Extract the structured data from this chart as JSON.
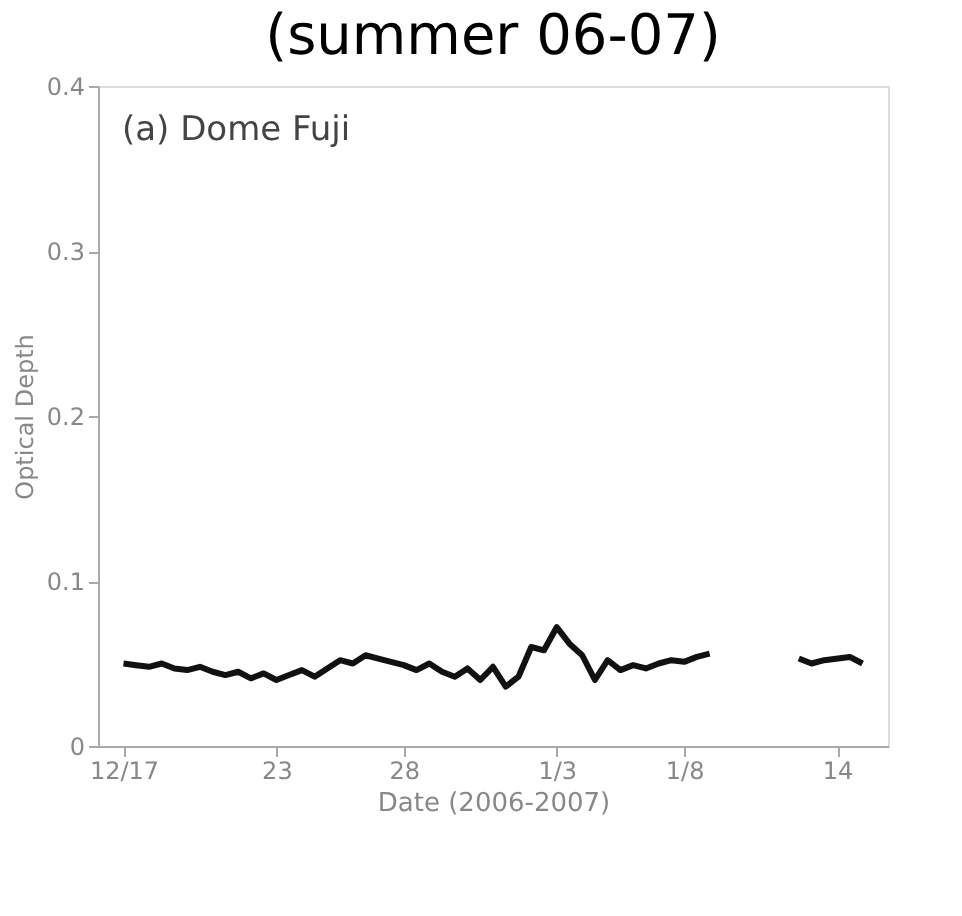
{
  "chart_data": {
    "type": "line",
    "title": "(summer 06-07)",
    "xlabel": "Date (2006-2007)",
    "ylabel": "Optical Depth",
    "annotations": [
      "(a) Dome Fuji"
    ],
    "x": [
      "2006-12-17T00:00",
      "2006-12-17T12:00",
      "2006-12-18T00:00",
      "2006-12-18T12:00",
      "2006-12-19T00:00",
      "2006-12-19T12:00",
      "2006-12-20T00:00",
      "2006-12-20T12:00",
      "2006-12-21T00:00",
      "2006-12-21T12:00",
      "2006-12-22T00:00",
      "2006-12-22T12:00",
      "2006-12-23T00:00",
      "2006-12-23T12:00",
      "2006-12-24T00:00",
      "2006-12-24T12:00",
      "2006-12-25T00:00",
      "2006-12-25T12:00",
      "2006-12-26T00:00",
      "2006-12-26T12:00",
      "2006-12-27T00:00",
      "2006-12-27T12:00",
      "2006-12-28T00:00",
      "2006-12-28T12:00",
      "2006-12-29T00:00",
      "2006-12-29T12:00",
      "2006-12-30T00:00",
      "2006-12-30T12:00",
      "2006-12-31T00:00",
      "2006-12-31T12:00",
      "2007-01-01T00:00",
      "2007-01-01T12:00",
      "2007-01-02T00:00",
      "2007-01-02T12:00",
      "2007-01-03T00:00",
      "2007-01-03T12:00",
      "2007-01-04T00:00",
      "2007-01-04T12:00",
      "2007-01-05T00:00",
      "2007-01-05T12:00",
      "2007-01-06T00:00",
      "2007-01-06T12:00",
      "2007-01-07T00:00",
      "2007-01-07T12:00",
      "2007-01-08T00:00",
      "2007-01-08T12:00",
      "2007-01-09T00:00",
      "2007-01-09T12:00",
      "2007-01-12T12:00",
      "2007-01-13T00:00",
      "2007-01-13T12:00",
      "2007-01-14T12:00",
      "2007-01-15T00:00"
    ],
    "series": [
      {
        "color": "#111111",
        "values": [
          0.05,
          0.049,
          0.048,
          0.05,
          0.047,
          0.046,
          0.048,
          0.045,
          0.043,
          0.045,
          0.041,
          0.044,
          0.04,
          0.043,
          0.046,
          0.042,
          0.047,
          0.052,
          0.05,
          0.055,
          0.053,
          0.051,
          0.049,
          0.046,
          0.05,
          0.045,
          0.042,
          0.047,
          0.04,
          0.048,
          0.036,
          0.042,
          0.06,
          0.058,
          0.072,
          0.062,
          0.055,
          0.04,
          0.052,
          0.046,
          0.049,
          0.047,
          0.05,
          0.052,
          0.051,
          0.054,
          0.056,
          null,
          0.053,
          0.05,
          0.052,
          0.054,
          0.05
        ]
      }
    ],
    "xlim": [
      "2006-12-16T00:00",
      "2007-01-16T00:00"
    ],
    "xticks": [
      {
        "value": "2006-12-17",
        "label": "12/17"
      },
      {
        "value": "2006-12-23",
        "label": "23"
      },
      {
        "value": "2006-12-28",
        "label": "28"
      },
      {
        "value": "2007-01-03",
        "label": "1/3"
      },
      {
        "value": "2007-01-08",
        "label": "1/8"
      },
      {
        "value": "2007-01-14",
        "label": "14"
      }
    ],
    "ylim": [
      0,
      0.4
    ],
    "yticks": [
      0,
      0.1,
      0.2,
      0.3,
      0.4
    ],
    "grid": false,
    "marker": "none",
    "line_style": "solid"
  }
}
